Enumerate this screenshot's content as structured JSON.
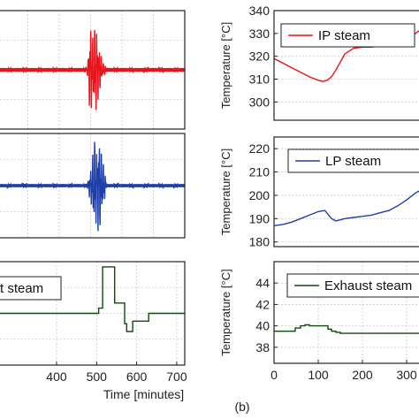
{
  "figure": {
    "panel_label": "(b)"
  },
  "colors": {
    "ip": "#e8141b",
    "lp": "#1f3fa8",
    "exhaust": "#0e4a10",
    "grid": "#c9c9c9"
  },
  "chart_data": [
    {
      "id": "left-ip",
      "type": "line",
      "column": "left",
      "row": 0,
      "xlim": [
        250,
        720
      ],
      "ylim": [
        -1,
        1
      ],
      "xticks": [],
      "yticks": [],
      "grid": true,
      "series": [
        {
          "color_key": "ip",
          "style": "oscillation",
          "x": [
            250,
            470,
            478,
            485,
            490,
            495,
            500,
            505,
            510,
            518,
            525,
            720
          ],
          "y": [
            0,
            0,
            0.15,
            -0.9,
            0.6,
            -0.7,
            0.8,
            -0.4,
            0.3,
            -0.1,
            0,
            0
          ]
        }
      ]
    },
    {
      "id": "left-lp",
      "type": "line",
      "column": "left",
      "row": 1,
      "xlim": [
        250,
        720
      ],
      "ylim": [
        -1,
        1
      ],
      "xticks": [],
      "yticks": [],
      "grid": true,
      "series": [
        {
          "color_key": "lp",
          "style": "oscillation",
          "x": [
            250,
            475,
            482,
            488,
            494,
            500,
            506,
            512,
            518,
            525,
            720
          ],
          "y": [
            0,
            0,
            0.2,
            -0.5,
            0.9,
            -0.8,
            0.95,
            -0.7,
            0.4,
            0,
            0
          ]
        }
      ]
    },
    {
      "id": "left-exhaust",
      "type": "line",
      "column": "left",
      "row": 2,
      "xlim": [
        250,
        720
      ],
      "ylim": [
        -1,
        1
      ],
      "xticks": [
        400,
        500,
        600,
        700
      ],
      "yticks": [],
      "grid": true,
      "xlabel": "Time [minutes]",
      "legend": {
        "entries": [
          "t steam"
        ],
        "placement": "top-left"
      },
      "series": [
        {
          "color_key": "exhaust",
          "x": [
            250,
            495,
            505,
            515,
            530,
            545,
            560,
            570,
            575,
            590,
            630,
            720
          ],
          "y": [
            0,
            0,
            0.1,
            0.9,
            0.9,
            0.2,
            0.2,
            -0.2,
            -0.35,
            -0.15,
            0,
            0
          ]
        }
      ]
    },
    {
      "id": "right-ip",
      "type": "line",
      "column": "right",
      "row": 0,
      "xlim": [
        0,
        360
      ],
      "ylim": [
        292,
        340
      ],
      "xticks": [],
      "yticks": [
        300,
        310,
        320,
        330,
        340
      ],
      "ylabel": "Temperature [°C]",
      "grid": true,
      "legend": {
        "entries": [
          "IP steam"
        ],
        "placement": "top-right"
      },
      "series": [
        {
          "name": "IP steam",
          "color_key": "ip",
          "x": [
            0,
            20,
            40,
            60,
            80,
            100,
            110,
            120,
            130,
            140,
            160,
            180,
            200,
            220,
            240,
            260,
            280,
            300,
            320,
            340,
            360
          ],
          "y": [
            319,
            317,
            315,
            313,
            311,
            309.5,
            309,
            309.5,
            311,
            314,
            321,
            323.5,
            324,
            324,
            324.5,
            325,
            326,
            327,
            330,
            333,
            335
          ]
        }
      ]
    },
    {
      "id": "right-lp",
      "type": "line",
      "column": "right",
      "row": 1,
      "xlim": [
        0,
        360
      ],
      "ylim": [
        178,
        225
      ],
      "xticks": [],
      "yticks": [
        180,
        190,
        200,
        210,
        220
      ],
      "ylabel": "Temperature [°C]",
      "grid": true,
      "legend": {
        "entries": [
          "LP steam"
        ],
        "placement": "top-right"
      },
      "series": [
        {
          "name": "LP steam",
          "color_key": "lp",
          "x": [
            0,
            20,
            40,
            60,
            80,
            100,
            115,
            130,
            140,
            160,
            180,
            200,
            220,
            240,
            260,
            280,
            300,
            320,
            340,
            360
          ],
          "y": [
            187,
            187.5,
            188.5,
            190,
            191.5,
            193,
            193.5,
            190,
            189,
            190,
            190.5,
            191,
            191.5,
            192.5,
            193.5,
            195.5,
            198,
            201,
            203,
            204
          ]
        }
      ]
    },
    {
      "id": "right-exhaust",
      "type": "line",
      "column": "right",
      "row": 2,
      "xlim": [
        0,
        360
      ],
      "ylim": [
        36.5,
        46
      ],
      "xticks": [
        0,
        100,
        200,
        300
      ],
      "yticks": [
        38,
        40,
        42,
        44
      ],
      "ylabel": "Temperature [°C]",
      "grid": true,
      "legend": {
        "entries": [
          "Exhaust steam"
        ],
        "placement": "top-right"
      },
      "series": [
        {
          "name": "Exhaust steam",
          "color_key": "exhaust",
          "x": [
            0,
            40,
            48,
            60,
            70,
            80,
            115,
            122,
            130,
            140,
            150,
            200,
            250,
            300,
            360
          ],
          "y": [
            39.5,
            39.5,
            39.8,
            40.0,
            40.1,
            40.0,
            40.0,
            39.7,
            39.5,
            39.4,
            39.3,
            39.3,
            39.3,
            39.3,
            39.3
          ]
        }
      ]
    }
  ]
}
